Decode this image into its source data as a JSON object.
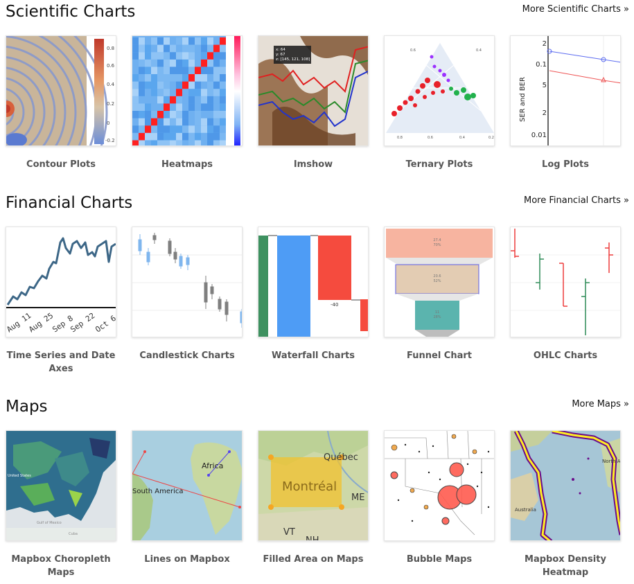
{
  "sections": [
    {
      "title": "Scientific Charts",
      "more": "More Scientific Charts »",
      "cards": [
        {
          "label": "Contour Plots",
          "icon": "contour-plot-thumbnail"
        },
        {
          "label": "Heatmaps",
          "icon": "heatmap-thumbnail"
        },
        {
          "label": "Imshow",
          "icon": "imshow-thumbnail"
        },
        {
          "label": "Ternary Plots",
          "icon": "ternary-plot-thumbnail"
        },
        {
          "label": "Log Plots",
          "icon": "log-plot-thumbnail"
        }
      ]
    },
    {
      "title": "Financial Charts",
      "more": "More Financial Charts »",
      "cards": [
        {
          "label": "Time Series and Date Axes",
          "icon": "time-series-thumbnail"
        },
        {
          "label": "Candlestick Charts",
          "icon": "candlestick-thumbnail"
        },
        {
          "label": "Waterfall Charts",
          "icon": "waterfall-thumbnail"
        },
        {
          "label": "Funnel Chart",
          "icon": "funnel-thumbnail"
        },
        {
          "label": "OHLC Charts",
          "icon": "ohlc-thumbnail"
        }
      ]
    },
    {
      "title": "Maps",
      "more": "More Maps »",
      "cards": [
        {
          "label": "Mapbox Choropleth Maps",
          "icon": "choropleth-map-thumbnail"
        },
        {
          "label": "Lines on Mapbox",
          "icon": "lines-map-thumbnail"
        },
        {
          "label": "Filled Area on Maps",
          "icon": "filled-area-map-thumbnail"
        },
        {
          "label": "Bubble Maps",
          "icon": "bubble-map-thumbnail"
        },
        {
          "label": "Mapbox Density Heatmap",
          "icon": "density-map-thumbnail"
        }
      ]
    }
  ],
  "thumb_text": {
    "contour_ticks": [
      "0.8",
      "0.6",
      "0.4",
      "0.2",
      "0",
      "-0.2"
    ],
    "imshow_tooltip": [
      "x: 64",
      "y: 67",
      "z: [145, 121, 108]"
    ],
    "ternary_ticks": [
      "0.6",
      "0.4",
      "0.8",
      "0.6",
      "0.4",
      "0.2"
    ],
    "log_ylabel": "SER and BER",
    "log_ticks": [
      "2",
      "0.1",
      "5",
      "2",
      "0.01"
    ],
    "ts_ticks": [
      "Aug 11",
      "Aug 25",
      "Sep 8",
      "Sep 22",
      "Oct 6"
    ],
    "waterfall_label": "-40",
    "funnel_labels": [
      "27.4",
      "70%",
      "20.6",
      "52%",
      "11",
      "28%"
    ],
    "choropleth_labels": [
      "United States",
      "Gulf of Mexico",
      "Cuba"
    ],
    "lines_labels": [
      "Africa",
      "South America"
    ],
    "filled_labels": [
      "Québec",
      "Montréal",
      "ME",
      "VT",
      "NH"
    ],
    "density_labels": [
      "North America",
      "Australia"
    ]
  }
}
